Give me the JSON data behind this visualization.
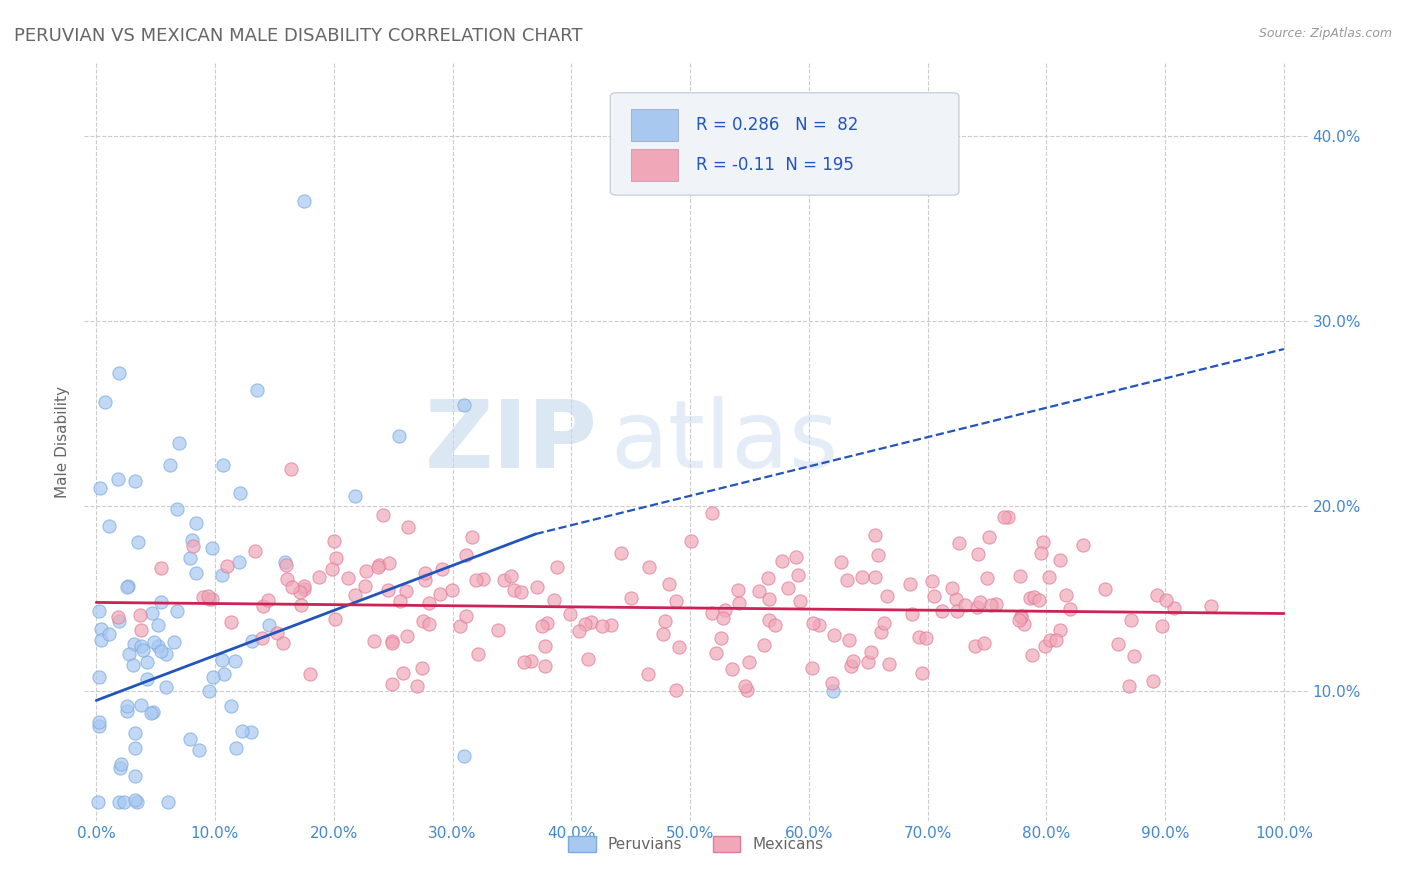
{
  "title": "PERUVIAN VS MEXICAN MALE DISABILITY CORRELATION CHART",
  "source": "Source: ZipAtlas.com",
  "xlabel": "",
  "ylabel": "Male Disability",
  "xlim": [
    -0.01,
    1.02
  ],
  "ylim": [
    0.03,
    0.44
  ],
  "xticks": [
    0.0,
    0.1,
    0.2,
    0.3,
    0.4,
    0.5,
    0.6,
    0.7,
    0.8,
    0.9,
    1.0
  ],
  "yticks": [
    0.1,
    0.2,
    0.3,
    0.4
  ],
  "ytick_labels": [
    "10.0%",
    "20.0%",
    "30.0%",
    "40.0%"
  ],
  "xtick_labels": [
    "0.0%",
    "10.0%",
    "20.0%",
    "30.0%",
    "40.0%",
    "50.0%",
    "60.0%",
    "70.0%",
    "80.0%",
    "90.0%",
    "100.0%"
  ],
  "peruvian_color": "#a8c8f0",
  "mexican_color": "#f0a8b8",
  "peruvian_edge_color": "#7aabe0",
  "mexican_edge_color": "#e07a9a",
  "peruvian_line_color": "#2255bb",
  "mexican_line_color": "#cc2255",
  "R_peruvian": 0.286,
  "N_peruvian": 82,
  "R_mexican": -0.11,
  "N_mexican": 195,
  "watermark_zip": "ZIP",
  "watermark_atlas": "atlas",
  "legend_label_peruvian": "Peruvians",
  "legend_label_mexican": "Mexicans",
  "background_color": "#ffffff",
  "grid_color": "#cccccc",
  "title_color": "#666666",
  "axis_label_color": "#666666",
  "tick_label_color": "#4488cc",
  "legend_r_color": "#2255bb",
  "peru_trend_start_x": 0.0,
  "peru_trend_start_y": 0.095,
  "peru_trend_solid_end_x": 0.37,
  "peru_trend_solid_end_y": 0.185,
  "peru_trend_dash_end_x": 1.0,
  "peru_trend_dash_end_y": 0.285,
  "mex_trend_start_x": 0.0,
  "mex_trend_start_y": 0.148,
  "mex_trend_end_x": 1.0,
  "mex_trend_end_y": 0.142
}
